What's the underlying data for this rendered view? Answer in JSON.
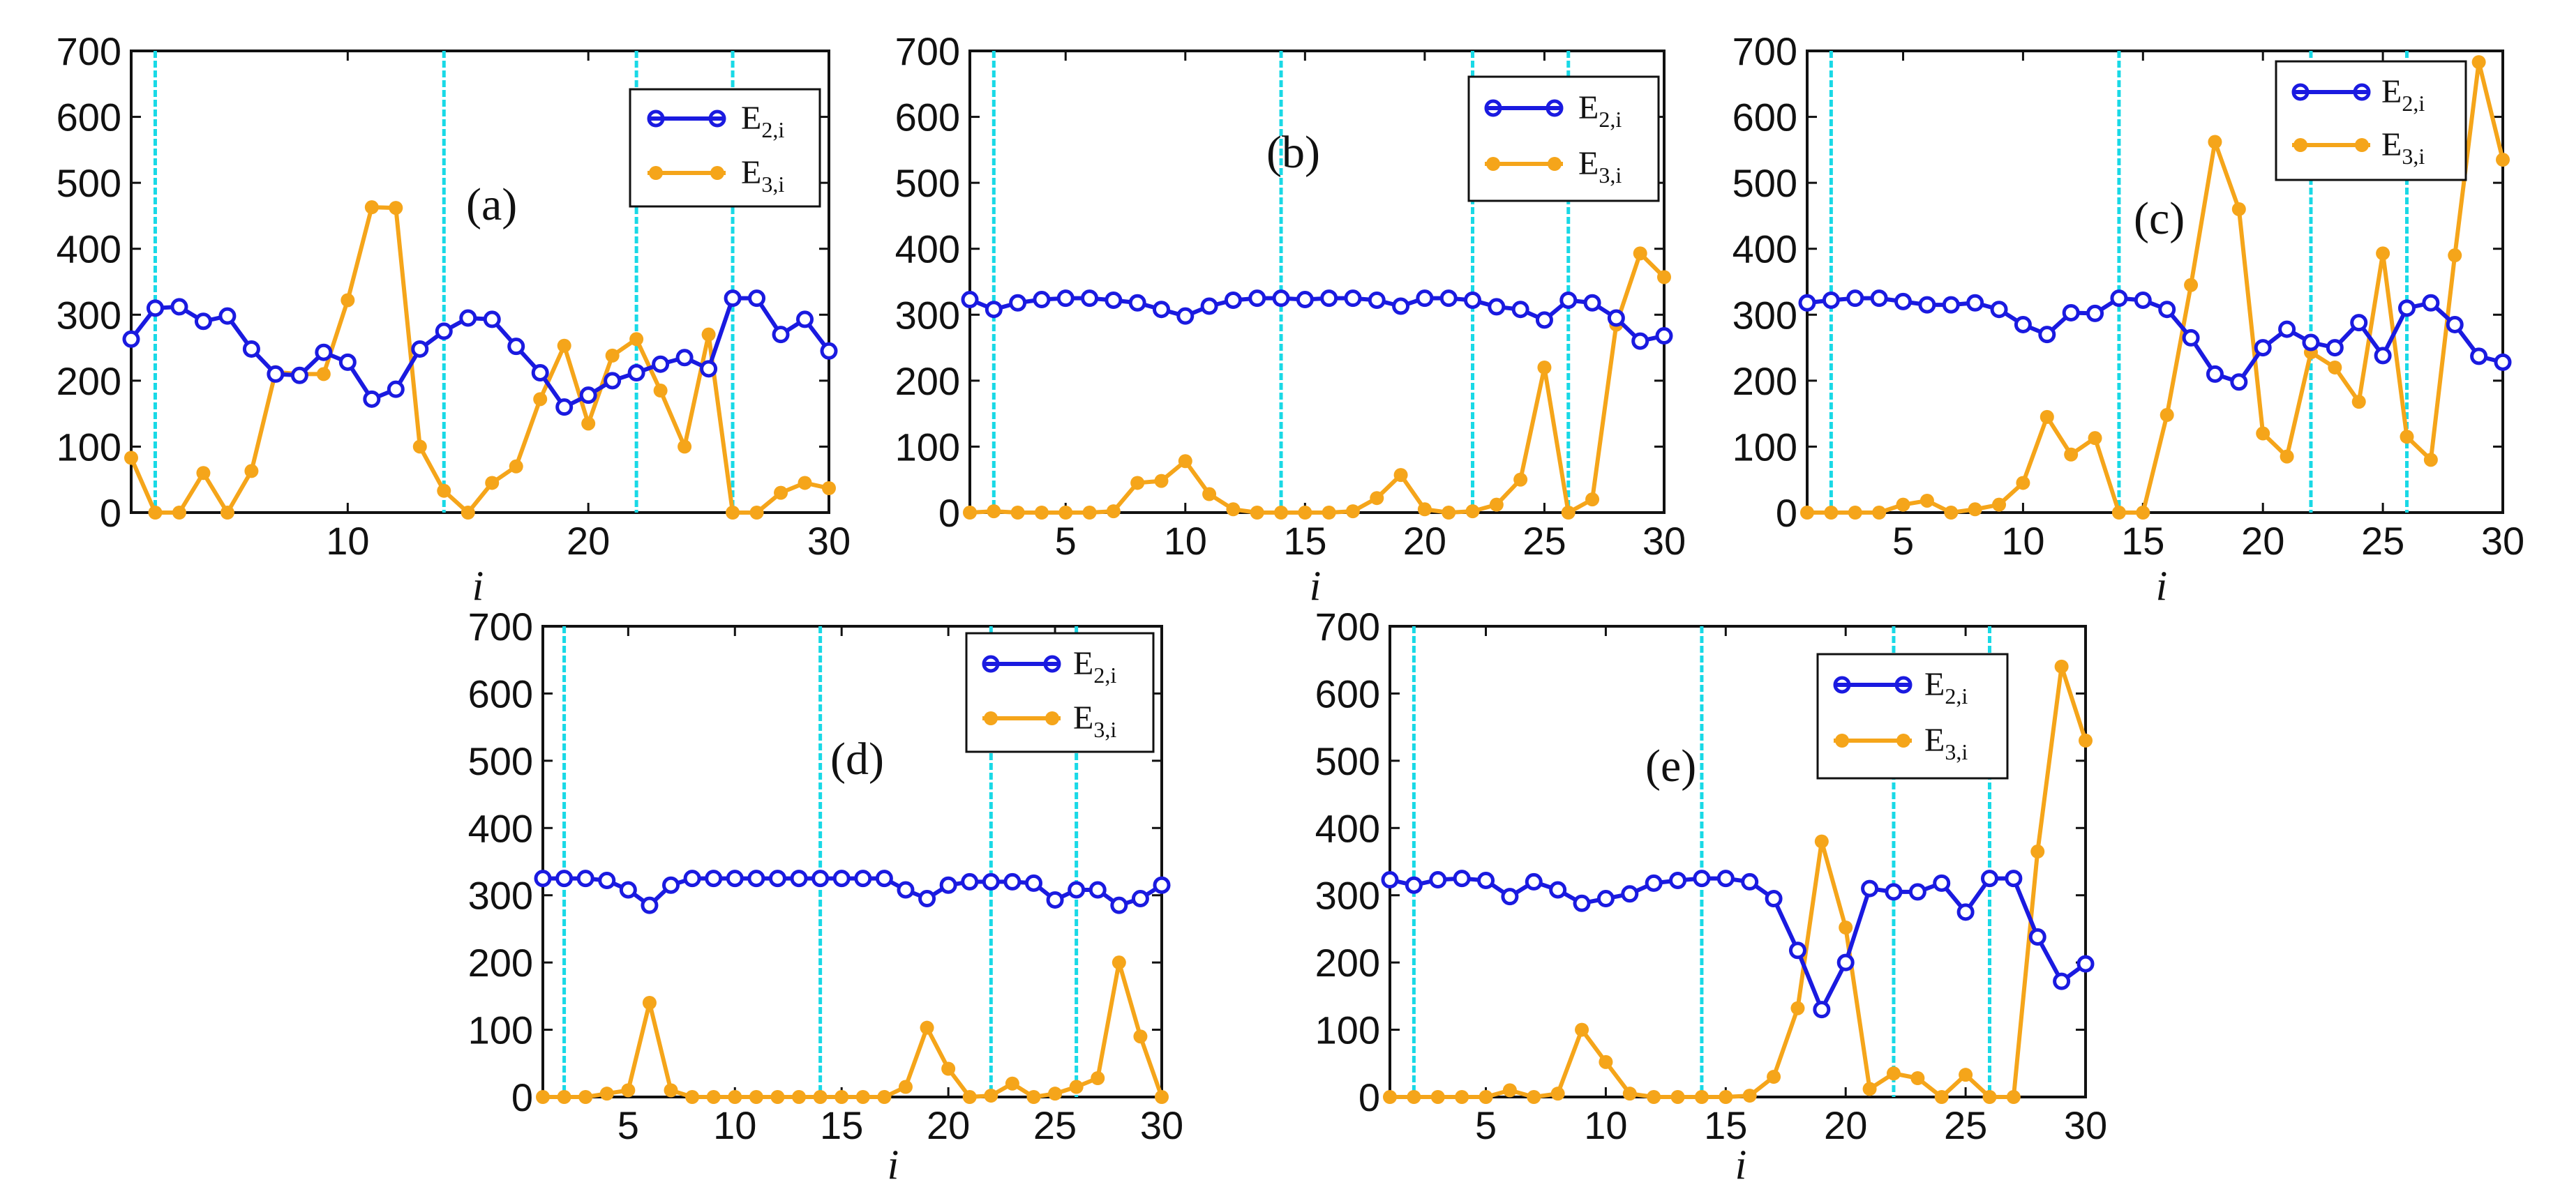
{
  "figure": {
    "colors": {
      "e2": "#1a1ae0",
      "e3": "#f5a51a",
      "vline": "#19d9e6",
      "axis": "#111111"
    }
  },
  "chart_data": [
    {
      "id": "a",
      "type": "line",
      "panel_label": "(a)",
      "xlabel": "i",
      "ylabel": "",
      "xlim": [
        1,
        30
      ],
      "ylim": [
        0,
        700
      ],
      "xticks": [
        10,
        20,
        30
      ],
      "yticks": [
        0,
        100,
        200,
        300,
        400,
        500,
        600,
        700
      ],
      "vlines": [
        2,
        14,
        22,
        26
      ],
      "x": [
        1,
        2,
        3,
        4,
        5,
        6,
        7,
        8,
        9,
        10,
        11,
        12,
        13,
        14,
        15,
        16,
        17,
        18,
        19,
        20,
        21,
        22,
        23,
        24,
        25,
        26,
        27,
        28,
        29,
        30
      ],
      "series": [
        {
          "name": "E2,i",
          "label_base": "E",
          "label_sub": "2,i",
          "marker": "open-circle",
          "values": [
            263,
            310,
            312,
            290,
            298,
            248,
            210,
            208,
            243,
            228,
            172,
            187,
            248,
            275,
            295,
            293,
            252,
            212,
            160,
            178,
            200,
            212,
            225,
            235,
            218,
            325,
            325,
            270,
            293,
            245
          ]
        },
        {
          "name": "E3,i",
          "label_base": "E",
          "label_sub": "3,i",
          "marker": "filled-circle",
          "values": [
            83,
            0,
            0,
            60,
            0,
            63,
            213,
            210,
            210,
            322,
            463,
            462,
            100,
            33,
            0,
            45,
            70,
            172,
            253,
            135,
            238,
            263,
            185,
            100,
            270,
            0,
            0,
            30,
            45,
            37
          ]
        }
      ],
      "legend_position": "top-right"
    },
    {
      "id": "b",
      "type": "line",
      "panel_label": "(b)",
      "xlabel": "i",
      "ylabel": "",
      "xlim": [
        1,
        30
      ],
      "ylim": [
        0,
        700
      ],
      "xticks": [
        5,
        10,
        15,
        20,
        25,
        30
      ],
      "yticks": [
        0,
        100,
        200,
        300,
        400,
        500,
        600,
        700
      ],
      "vlines": [
        2,
        14,
        22,
        26
      ],
      "x": [
        1,
        2,
        3,
        4,
        5,
        6,
        7,
        8,
        9,
        10,
        11,
        12,
        13,
        14,
        15,
        16,
        17,
        18,
        19,
        20,
        21,
        22,
        23,
        24,
        25,
        26,
        27,
        28,
        29,
        30
      ],
      "series": [
        {
          "name": "E2,i",
          "label_base": "E",
          "label_sub": "2,i",
          "marker": "open-circle",
          "values": [
            323,
            308,
            318,
            323,
            325,
            325,
            322,
            318,
            308,
            298,
            313,
            322,
            325,
            325,
            323,
            325,
            325,
            322,
            313,
            325,
            325,
            322,
            312,
            308,
            292,
            322,
            318,
            295,
            260,
            268
          ]
        },
        {
          "name": "E3,i",
          "label_base": "E",
          "label_sub": "3,i",
          "marker": "filled-circle",
          "values": [
            0,
            2,
            0,
            0,
            0,
            0,
            2,
            45,
            48,
            78,
            28,
            5,
            0,
            0,
            0,
            0,
            2,
            22,
            57,
            5,
            0,
            2,
            12,
            50,
            220,
            0,
            20,
            285,
            393,
            357
          ]
        }
      ],
      "legend_position": "top-right"
    },
    {
      "id": "c",
      "type": "line",
      "panel_label": "(c)",
      "xlabel": "i",
      "ylabel": "",
      "xlim": [
        1,
        30
      ],
      "ylim": [
        0,
        700
      ],
      "xticks": [
        5,
        10,
        15,
        20,
        25,
        30
      ],
      "yticks": [
        0,
        100,
        200,
        300,
        400,
        500,
        600,
        700
      ],
      "vlines": [
        2,
        14,
        22,
        26
      ],
      "x": [
        1,
        2,
        3,
        4,
        5,
        6,
        7,
        8,
        9,
        10,
        11,
        12,
        13,
        14,
        15,
        16,
        17,
        18,
        19,
        20,
        21,
        22,
        23,
        24,
        25,
        26,
        27,
        28,
        29,
        30
      ],
      "series": [
        {
          "name": "E2,i",
          "label_base": "E",
          "label_sub": "2,i",
          "marker": "open-circle",
          "values": [
            318,
            322,
            325,
            325,
            320,
            315,
            315,
            318,
            308,
            285,
            270,
            303,
            302,
            325,
            322,
            308,
            265,
            210,
            198,
            250,
            278,
            258,
            250,
            288,
            238,
            310,
            318,
            285,
            237,
            228
          ]
        },
        {
          "name": "E3,i",
          "label_base": "E",
          "label_sub": "3,i",
          "marker": "filled-circle",
          "values": [
            0,
            0,
            0,
            0,
            12,
            18,
            0,
            5,
            12,
            45,
            145,
            88,
            113,
            0,
            0,
            148,
            345,
            562,
            460,
            120,
            85,
            243,
            220,
            168,
            393,
            115,
            80,
            390,
            683,
            535
          ]
        }
      ],
      "legend_position": "top-right"
    },
    {
      "id": "d",
      "type": "line",
      "panel_label": "(d)",
      "xlabel": "i",
      "ylabel": "",
      "xlim": [
        1,
        30
      ],
      "ylim": [
        0,
        700
      ],
      "xticks": [
        5,
        10,
        15,
        20,
        25,
        30
      ],
      "yticks": [
        0,
        100,
        200,
        300,
        400,
        500,
        600,
        700
      ],
      "vlines": [
        2,
        14,
        22,
        26
      ],
      "x": [
        1,
        2,
        3,
        4,
        5,
        6,
        7,
        8,
        9,
        10,
        11,
        12,
        13,
        14,
        15,
        16,
        17,
        18,
        19,
        20,
        21,
        22,
        23,
        24,
        25,
        26,
        27,
        28,
        29,
        30
      ],
      "series": [
        {
          "name": "E2,i",
          "label_base": "E",
          "label_sub": "2,i",
          "marker": "open-circle",
          "values": [
            325,
            325,
            325,
            322,
            308,
            285,
            315,
            325,
            325,
            325,
            325,
            325,
            325,
            325,
            325,
            325,
            325,
            308,
            295,
            315,
            320,
            320,
            320,
            318,
            293,
            308,
            308,
            285,
            295,
            315
          ]
        },
        {
          "name": "E3,i",
          "label_base": "E",
          "label_sub": "3,i",
          "marker": "filled-circle",
          "values": [
            0,
            0,
            0,
            5,
            10,
            140,
            10,
            0,
            0,
            0,
            0,
            0,
            0,
            0,
            0,
            0,
            0,
            15,
            103,
            42,
            0,
            2,
            20,
            0,
            5,
            15,
            28,
            200,
            90,
            0
          ]
        }
      ],
      "legend_position": "top-right"
    },
    {
      "id": "e",
      "type": "line",
      "panel_label": "(e)",
      "xlabel": "i",
      "ylabel": "",
      "xlim": [
        1,
        30
      ],
      "ylim": [
        0,
        700
      ],
      "xticks": [
        5,
        10,
        15,
        20,
        25,
        30
      ],
      "yticks": [
        0,
        100,
        200,
        300,
        400,
        500,
        600,
        700
      ],
      "vlines": [
        2,
        14,
        22,
        26
      ],
      "x": [
        1,
        2,
        3,
        4,
        5,
        6,
        7,
        8,
        9,
        10,
        11,
        12,
        13,
        14,
        15,
        16,
        17,
        18,
        19,
        20,
        21,
        22,
        23,
        24,
        25,
        26,
        27,
        28,
        29,
        30
      ],
      "series": [
        {
          "name": "E2,i",
          "label_base": "E",
          "label_sub": "2,i",
          "marker": "open-circle",
          "values": [
            323,
            315,
            323,
            325,
            322,
            298,
            320,
            308,
            288,
            295,
            302,
            318,
            322,
            325,
            325,
            320,
            295,
            218,
            130,
            200,
            310,
            305,
            305,
            318,
            275,
            325,
            325,
            238,
            172,
            198
          ]
        },
        {
          "name": "E3,i",
          "label_base": "E",
          "label_sub": "3,i",
          "marker": "filled-circle",
          "values": [
            0,
            0,
            0,
            0,
            0,
            10,
            0,
            5,
            100,
            52,
            5,
            0,
            0,
            0,
            0,
            2,
            30,
            132,
            380,
            252,
            12,
            35,
            28,
            0,
            33,
            0,
            0,
            365,
            640,
            530
          ]
        }
      ],
      "legend_position": "top-right"
    }
  ]
}
